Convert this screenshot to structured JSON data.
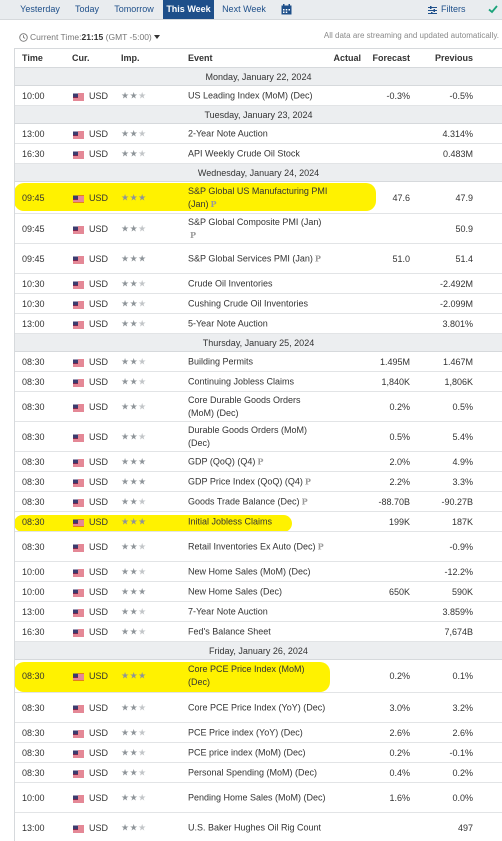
{
  "tabs": [
    {
      "label": "Yesterday",
      "active": false
    },
    {
      "label": "Today",
      "active": false
    },
    {
      "label": "Tomorrow",
      "active": false
    },
    {
      "label": "This Week",
      "active": true
    },
    {
      "label": "Next Week",
      "active": false
    }
  ],
  "calendar_icon": "calendar-icon",
  "filters_label": "Filters",
  "current_time": {
    "label": "Current Time:",
    "time": "21:15",
    "zone": "(GMT -5:00)"
  },
  "stream_note": "All data are streaming and updated automatically.",
  "columns": {
    "time": "Time",
    "currency": "Cur.",
    "importance": "Imp.",
    "event": "Event",
    "actual": "Actual",
    "forecast": "Forecast",
    "previous": "Previous"
  },
  "colors": {
    "accent": "#1e4f8a",
    "highlight": "#fff200",
    "positive": "#1a9c3a"
  },
  "days": [
    {
      "label": "Monday, January 22, 2024",
      "rows": [
        {
          "time": "10:00",
          "currency": "USD",
          "importance": 2,
          "event": "US Leading Index (MoM) (Dec)",
          "prelim": false,
          "actual": "",
          "forecast": "-0.3%",
          "previous": "-0.5%"
        }
      ]
    },
    {
      "label": "Tuesday, January 23, 2024",
      "rows": [
        {
          "time": "13:00",
          "currency": "USD",
          "importance": 2,
          "event": "2-Year Note Auction",
          "prelim": false,
          "actual": "",
          "forecast": "",
          "previous": "4.314%"
        },
        {
          "time": "16:30",
          "currency": "USD",
          "importance": 2,
          "event": "API Weekly Crude Oil Stock",
          "prelim": false,
          "actual": "",
          "forecast": "",
          "previous": "0.483M"
        }
      ]
    },
    {
      "label": "Wednesday, January 24, 2024",
      "rows": [
        {
          "time": "09:45",
          "currency": "USD",
          "importance": 3,
          "event": "S&P Global US Manufacturing PMI (Jan)",
          "prelim": true,
          "actual": "",
          "forecast": "47.6",
          "previous": "47.9"
        },
        {
          "time": "09:45",
          "currency": "USD",
          "importance": 2,
          "event": "S&P Global Composite PMI (Jan)",
          "prelim": true,
          "actual": "",
          "forecast": "",
          "previous": "50.9"
        },
        {
          "time": "09:45",
          "currency": "USD",
          "importance": 3,
          "event": "S&P Global Services PMI (Jan)",
          "prelim": true,
          "actual": "",
          "forecast": "51.0",
          "previous": "51.4"
        },
        {
          "time": "10:30",
          "currency": "USD",
          "importance": 2,
          "event": "Crude Oil Inventories",
          "prelim": false,
          "actual": "",
          "forecast": "",
          "previous": "-2.492M",
          "previous_green": true
        },
        {
          "time": "10:30",
          "currency": "USD",
          "importance": 2,
          "event": "Cushing Crude Oil Inventories",
          "prelim": false,
          "actual": "",
          "forecast": "",
          "previous": "-2.099M",
          "previous_green": true
        },
        {
          "time": "13:00",
          "currency": "USD",
          "importance": 2,
          "event": "5-Year Note Auction",
          "prelim": false,
          "actual": "",
          "forecast": "",
          "previous": "3.801%"
        }
      ]
    },
    {
      "label": "Thursday, January 25, 2024",
      "rows": [
        {
          "time": "08:30",
          "currency": "USD",
          "importance": 2,
          "event": "Building Permits",
          "prelim": false,
          "actual": "",
          "forecast": "1.495M",
          "previous": "1.467M"
        },
        {
          "time": "08:30",
          "currency": "USD",
          "importance": 2,
          "event": "Continuing Jobless Claims",
          "prelim": false,
          "actual": "",
          "forecast": "1,840K",
          "previous": "1,806K"
        },
        {
          "time": "08:30",
          "currency": "USD",
          "importance": 2,
          "event": "Core Durable Goods Orders (MoM) (Dec)",
          "prelim": false,
          "actual": "",
          "forecast": "0.2%",
          "previous": "0.5%"
        },
        {
          "time": "08:30",
          "currency": "USD",
          "importance": 2,
          "event": "Durable Goods Orders (MoM) (Dec)",
          "prelim": false,
          "actual": "",
          "forecast": "0.5%",
          "previous": "5.4%"
        },
        {
          "time": "08:30",
          "currency": "USD",
          "importance": 3,
          "event": "GDP (QoQ) (Q4)",
          "prelim": true,
          "actual": "",
          "forecast": "2.0%",
          "previous": "4.9%"
        },
        {
          "time": "08:30",
          "currency": "USD",
          "importance": 3,
          "event": "GDP Price Index (QoQ) (Q4)",
          "prelim": true,
          "actual": "",
          "forecast": "2.2%",
          "previous": "3.3%"
        },
        {
          "time": "08:30",
          "currency": "USD",
          "importance": 2,
          "event": "Goods Trade Balance (Dec)",
          "prelim": true,
          "actual": "",
          "forecast": "-88.70B",
          "previous": "-90.27B"
        },
        {
          "time": "08:30",
          "currency": "USD",
          "importance": 3,
          "event": "Initial Jobless Claims",
          "prelim": false,
          "actual": "",
          "forecast": "199K",
          "previous": "187K"
        },
        {
          "time": "08:30",
          "currency": "USD",
          "importance": 2,
          "event": "Retail Inventories Ex Auto (Dec)",
          "prelim": true,
          "actual": "",
          "forecast": "",
          "previous": "-0.9%"
        },
        {
          "time": "10:00",
          "currency": "USD",
          "importance": 2,
          "event": "New Home Sales (MoM) (Dec)",
          "prelim": false,
          "actual": "",
          "forecast": "",
          "previous": "-12.2%"
        },
        {
          "time": "10:00",
          "currency": "USD",
          "importance": 3,
          "event": "New Home Sales (Dec)",
          "prelim": false,
          "actual": "",
          "forecast": "650K",
          "previous": "590K"
        },
        {
          "time": "13:00",
          "currency": "USD",
          "importance": 2,
          "event": "7-Year Note Auction",
          "prelim": false,
          "actual": "",
          "forecast": "",
          "previous": "3.859%"
        },
        {
          "time": "16:30",
          "currency": "USD",
          "importance": 2,
          "event": "Fed's Balance Sheet",
          "prelim": false,
          "actual": "",
          "forecast": "",
          "previous": "7,674B"
        }
      ]
    },
    {
      "label": "Friday, January 26, 2024",
      "rows": [
        {
          "time": "08:30",
          "currency": "USD",
          "importance": 3,
          "event": "Core PCE Price Index (MoM) (Dec)",
          "prelim": false,
          "actual": "",
          "forecast": "0.2%",
          "previous": "0.1%"
        },
        {
          "time": "08:30",
          "currency": "USD",
          "importance": 2,
          "event": "Core PCE Price Index (YoY) (Dec)",
          "prelim": false,
          "actual": "",
          "forecast": "3.0%",
          "previous": "3.2%"
        },
        {
          "time": "08:30",
          "currency": "USD",
          "importance": 2,
          "event": "PCE Price index (YoY) (Dec)",
          "prelim": false,
          "actual": "",
          "forecast": "2.6%",
          "previous": "2.6%"
        },
        {
          "time": "08:30",
          "currency": "USD",
          "importance": 2,
          "event": "PCE price index (MoM) (Dec)",
          "prelim": false,
          "actual": "",
          "forecast": "0.2%",
          "previous": "-0.1%"
        },
        {
          "time": "08:30",
          "currency": "USD",
          "importance": 2,
          "event": "Personal Spending (MoM) (Dec)",
          "prelim": false,
          "actual": "",
          "forecast": "0.4%",
          "previous": "0.2%"
        },
        {
          "time": "10:00",
          "currency": "USD",
          "importance": 2,
          "event": "Pending Home Sales (MoM) (Dec)",
          "prelim": false,
          "actual": "",
          "forecast": "1.6%",
          "previous": "0.0%"
        },
        {
          "time": "13:00",
          "currency": "USD",
          "importance": 2,
          "event": "U.S. Baker Hughes Oil Rig Count",
          "prelim": false,
          "actual": "",
          "forecast": "",
          "previous": "497"
        }
      ]
    }
  ]
}
